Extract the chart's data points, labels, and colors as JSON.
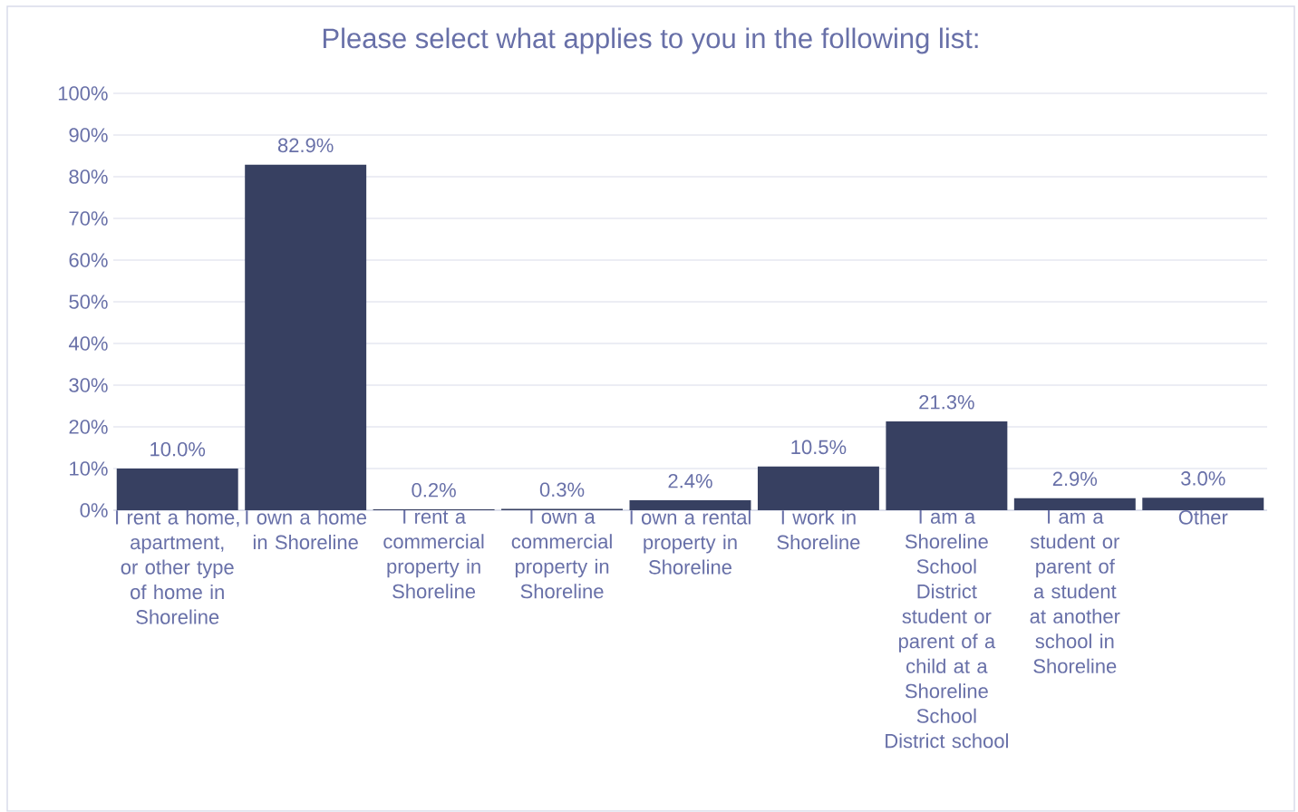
{
  "chart_data": {
    "type": "bar",
    "title": "Please select what applies to you in the following list:",
    "categories": [
      "I rent a home, apartment, or other type of home in Shoreline",
      "I own a home in Shoreline",
      "I rent a commercial property in Shoreline",
      "I own a commercial property in Shoreline",
      "I own a rental property in Shoreline",
      "I work in Shoreline",
      "I am a Shoreline School District student or parent of a child at a Shoreline School District school",
      "I am a student or parent of a student at another school in Shoreline",
      "Other"
    ],
    "values": [
      10.0,
      82.9,
      0.2,
      0.3,
      2.4,
      10.5,
      21.3,
      2.9,
      3.0
    ],
    "value_labels": [
      "10.0%",
      "82.9%",
      "0.2%",
      "0.3%",
      "2.4%",
      "10.5%",
      "21.3%",
      "2.9%",
      "3.0%"
    ],
    "color": "#374061",
    "ylim": [
      0,
      100
    ],
    "yticks": [
      {
        "value": 0,
        "label": "0%"
      },
      {
        "value": 10,
        "label": "10%"
      },
      {
        "value": 20,
        "label": "20%"
      },
      {
        "value": 30,
        "label": "30%"
      },
      {
        "value": 40,
        "label": "40%"
      },
      {
        "value": 50,
        "label": "50%"
      },
      {
        "value": 60,
        "label": "60%"
      },
      {
        "value": 70,
        "label": "70%"
      },
      {
        "value": 80,
        "label": "80%"
      },
      {
        "value": 90,
        "label": "90%"
      },
      {
        "value": 100,
        "label": "100%"
      }
    ],
    "grid": true
  }
}
